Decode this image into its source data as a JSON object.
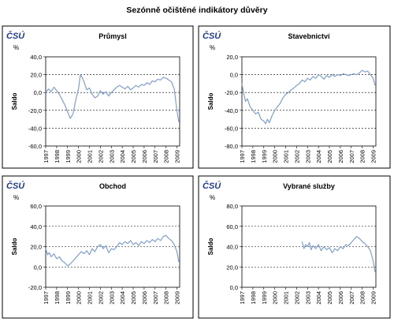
{
  "title": "Sezónně očištěné indikátory důvěry",
  "logo": "ČSÚ",
  "chart_data": [
    {
      "type": "line",
      "title": "Průmysl",
      "unit": "%",
      "ylabel": "Saldo",
      "ylim": [
        -60,
        40
      ],
      "yticks": [
        "40,0",
        "20,0",
        "0,0",
        "-20,0",
        "-40,0",
        "-60,0"
      ],
      "xlim": [
        1997,
        2009.25
      ],
      "xticks": [
        "1997",
        "1998",
        "1999",
        "2000",
        "2001",
        "2002",
        "2003",
        "2004",
        "2005",
        "2006",
        "2007",
        "2008",
        "2009"
      ],
      "series": [
        {
          "color": "#7f9fd4",
          "points": [
            [
              1997.0,
              0
            ],
            [
              1997.25,
              4
            ],
            [
              1997.5,
              1
            ],
            [
              1997.75,
              6
            ],
            [
              1998.0,
              2
            ],
            [
              1998.25,
              -2
            ],
            [
              1998.5,
              -8
            ],
            [
              1998.75,
              -14
            ],
            [
              1999.0,
              -22
            ],
            [
              1999.25,
              -29
            ],
            [
              1999.5,
              -24
            ],
            [
              1999.75,
              -8
            ],
            [
              2000.0,
              4
            ],
            [
              2000.17,
              20
            ],
            [
              2000.33,
              17
            ],
            [
              2000.5,
              12
            ],
            [
              2000.75,
              3
            ],
            [
              2001.0,
              5
            ],
            [
              2001.25,
              -2
            ],
            [
              2001.5,
              -6
            ],
            [
              2001.75,
              -4
            ],
            [
              2002.0,
              2
            ],
            [
              2002.25,
              -2
            ],
            [
              2002.5,
              1
            ],
            [
              2002.75,
              -4
            ],
            [
              2003.0,
              0
            ],
            [
              2003.25,
              3
            ],
            [
              2003.5,
              6
            ],
            [
              2003.75,
              8
            ],
            [
              2004.0,
              6
            ],
            [
              2004.25,
              4
            ],
            [
              2004.5,
              7
            ],
            [
              2004.75,
              3
            ],
            [
              2005.0,
              5
            ],
            [
              2005.25,
              8
            ],
            [
              2005.5,
              6
            ],
            [
              2005.75,
              9
            ],
            [
              2006.0,
              8
            ],
            [
              2006.25,
              11
            ],
            [
              2006.5,
              9
            ],
            [
              2006.75,
              13
            ],
            [
              2007.0,
              12
            ],
            [
              2007.25,
              15
            ],
            [
              2007.5,
              14
            ],
            [
              2007.75,
              17
            ],
            [
              2008.0,
              16
            ],
            [
              2008.25,
              14
            ],
            [
              2008.5,
              12
            ],
            [
              2008.75,
              4
            ],
            [
              2009.0,
              -20
            ],
            [
              2009.17,
              -33
            ]
          ]
        }
      ]
    },
    {
      "type": "line",
      "title": "Stavebnictví",
      "unit": "%",
      "ylabel": "Saldo",
      "ylim": [
        -80,
        20
      ],
      "yticks": [
        "20,0",
        "0,0",
        "-20,0",
        "-40,0",
        "-60,0",
        "-80,0"
      ],
      "xlim": [
        1997,
        2009.25
      ],
      "xticks": [
        "1997",
        "1998",
        "1999",
        "2000",
        "2001",
        "2002",
        "2003",
        "2004",
        "2005",
        "2006",
        "2007",
        "2008",
        "2009"
      ],
      "series": [
        {
          "color": "#7f9fd4",
          "points": [
            [
              1997.0,
              -10
            ],
            [
              1997.17,
              -22
            ],
            [
              1997.33,
              -30
            ],
            [
              1997.5,
              -27
            ],
            [
              1997.75,
              -36
            ],
            [
              1998.0,
              -40
            ],
            [
              1998.25,
              -44
            ],
            [
              1998.5,
              -42
            ],
            [
              1998.75,
              -50
            ],
            [
              1999.0,
              -52
            ],
            [
              1999.17,
              -55
            ],
            [
              1999.33,
              -50
            ],
            [
              1999.5,
              -54
            ],
            [
              1999.75,
              -46
            ],
            [
              2000.0,
              -40
            ],
            [
              2000.25,
              -36
            ],
            [
              2000.5,
              -32
            ],
            [
              2000.75,
              -26
            ],
            [
              2001.0,
              -22
            ],
            [
              2001.25,
              -20
            ],
            [
              2001.5,
              -17
            ],
            [
              2001.75,
              -15
            ],
            [
              2002.0,
              -12
            ],
            [
              2002.25,
              -10
            ],
            [
              2002.5,
              -6
            ],
            [
              2002.75,
              -8
            ],
            [
              2003.0,
              -4
            ],
            [
              2003.25,
              -6
            ],
            [
              2003.5,
              -2
            ],
            [
              2003.75,
              -4
            ],
            [
              2004.0,
              0
            ],
            [
              2004.25,
              -2
            ],
            [
              2004.5,
              -5
            ],
            [
              2004.75,
              -1
            ],
            [
              2005.0,
              -3
            ],
            [
              2005.25,
              0
            ],
            [
              2005.5,
              -2
            ],
            [
              2005.75,
              0
            ],
            [
              2006.0,
              -1
            ],
            [
              2006.25,
              1
            ],
            [
              2006.5,
              0
            ],
            [
              2006.75,
              -1
            ],
            [
              2007.0,
              0
            ],
            [
              2007.25,
              1
            ],
            [
              2007.5,
              0
            ],
            [
              2007.75,
              2
            ],
            [
              2008.0,
              5
            ],
            [
              2008.25,
              3
            ],
            [
              2008.5,
              4
            ],
            [
              2008.75,
              0
            ],
            [
              2009.0,
              -4
            ],
            [
              2009.17,
              -12
            ]
          ]
        }
      ]
    },
    {
      "type": "line",
      "title": "Obchod",
      "unit": "%",
      "ylabel": "Saldo",
      "ylim": [
        -20,
        60
      ],
      "yticks": [
        "60,0",
        "40,0",
        "20,0",
        "0,0",
        "-20,0"
      ],
      "xlim": [
        1997,
        2009.25
      ],
      "xticks": [
        "1997",
        "1998",
        "1999",
        "2000",
        "2001",
        "2002",
        "2003",
        "2004",
        "2005",
        "2006",
        "2007",
        "2008",
        "2009"
      ],
      "series": [
        {
          "color": "#7f9fd4",
          "points": [
            [
              1997.0,
              18
            ],
            [
              1997.17,
              12
            ],
            [
              1997.33,
              14
            ],
            [
              1997.5,
              10
            ],
            [
              1997.75,
              13
            ],
            [
              1998.0,
              8
            ],
            [
              1998.25,
              10
            ],
            [
              1998.5,
              6
            ],
            [
              1998.75,
              4
            ],
            [
              1999.0,
              1
            ],
            [
              1999.25,
              3
            ],
            [
              1999.5,
              6
            ],
            [
              1999.75,
              9
            ],
            [
              2000.0,
              12
            ],
            [
              2000.25,
              15
            ],
            [
              2000.5,
              13
            ],
            [
              2000.75,
              16
            ],
            [
              2001.0,
              12
            ],
            [
              2001.25,
              18
            ],
            [
              2001.5,
              15
            ],
            [
              2001.75,
              20
            ],
            [
              2002.0,
              22
            ],
            [
              2002.25,
              18
            ],
            [
              2002.5,
              21
            ],
            [
              2002.75,
              14
            ],
            [
              2003.0,
              18
            ],
            [
              2003.25,
              17
            ],
            [
              2003.5,
              20
            ],
            [
              2003.75,
              24
            ],
            [
              2004.0,
              22
            ],
            [
              2004.25,
              25
            ],
            [
              2004.5,
              23
            ],
            [
              2004.75,
              26
            ],
            [
              2005.0,
              22
            ],
            [
              2005.25,
              24
            ],
            [
              2005.5,
              21
            ],
            [
              2005.75,
              25
            ],
            [
              2006.0,
              23
            ],
            [
              2006.25,
              26
            ],
            [
              2006.5,
              24
            ],
            [
              2006.75,
              27
            ],
            [
              2007.0,
              25
            ],
            [
              2007.25,
              28
            ],
            [
              2007.5,
              26
            ],
            [
              2007.75,
              30
            ],
            [
              2008.0,
              31
            ],
            [
              2008.25,
              28
            ],
            [
              2008.5,
              26
            ],
            [
              2008.75,
              22
            ],
            [
              2009.0,
              15
            ],
            [
              2009.17,
              5
            ]
          ]
        }
      ]
    },
    {
      "type": "line",
      "title": "Vybrané služby",
      "unit": "%",
      "ylabel": "Saldo",
      "ylim": [
        0,
        80
      ],
      "yticks": [
        "80,0",
        "60,0",
        "40,0",
        "20,0",
        "0,0"
      ],
      "xlim": [
        1997,
        2009.25
      ],
      "xticks": [
        "1997",
        "1998",
        "1999",
        "2000",
        "2001",
        "2002",
        "2003",
        "2004",
        "2005",
        "2006",
        "2007",
        "2008",
        "2009"
      ],
      "series": [
        {
          "color": "#7f9fd4",
          "points": [
            [
              2002.5,
              45
            ],
            [
              2002.67,
              38
            ],
            [
              2002.83,
              42
            ],
            [
              2003.0,
              40
            ],
            [
              2003.17,
              44
            ],
            [
              2003.33,
              37
            ],
            [
              2003.5,
              41
            ],
            [
              2003.75,
              38
            ],
            [
              2004.0,
              42
            ],
            [
              2004.25,
              36
            ],
            [
              2004.5,
              40
            ],
            [
              2004.75,
              37
            ],
            [
              2005.0,
              39
            ],
            [
              2005.25,
              34
            ],
            [
              2005.5,
              38
            ],
            [
              2005.75,
              36
            ],
            [
              2006.0,
              40
            ],
            [
              2006.25,
              38
            ],
            [
              2006.5,
              42
            ],
            [
              2006.75,
              41
            ],
            [
              2007.0,
              44
            ],
            [
              2007.25,
              47
            ],
            [
              2007.5,
              50
            ],
            [
              2007.75,
              48
            ],
            [
              2008.0,
              45
            ],
            [
              2008.25,
              43
            ],
            [
              2008.5,
              40
            ],
            [
              2008.75,
              36
            ],
            [
              2009.0,
              26
            ],
            [
              2009.17,
              15
            ]
          ]
        }
      ]
    }
  ]
}
